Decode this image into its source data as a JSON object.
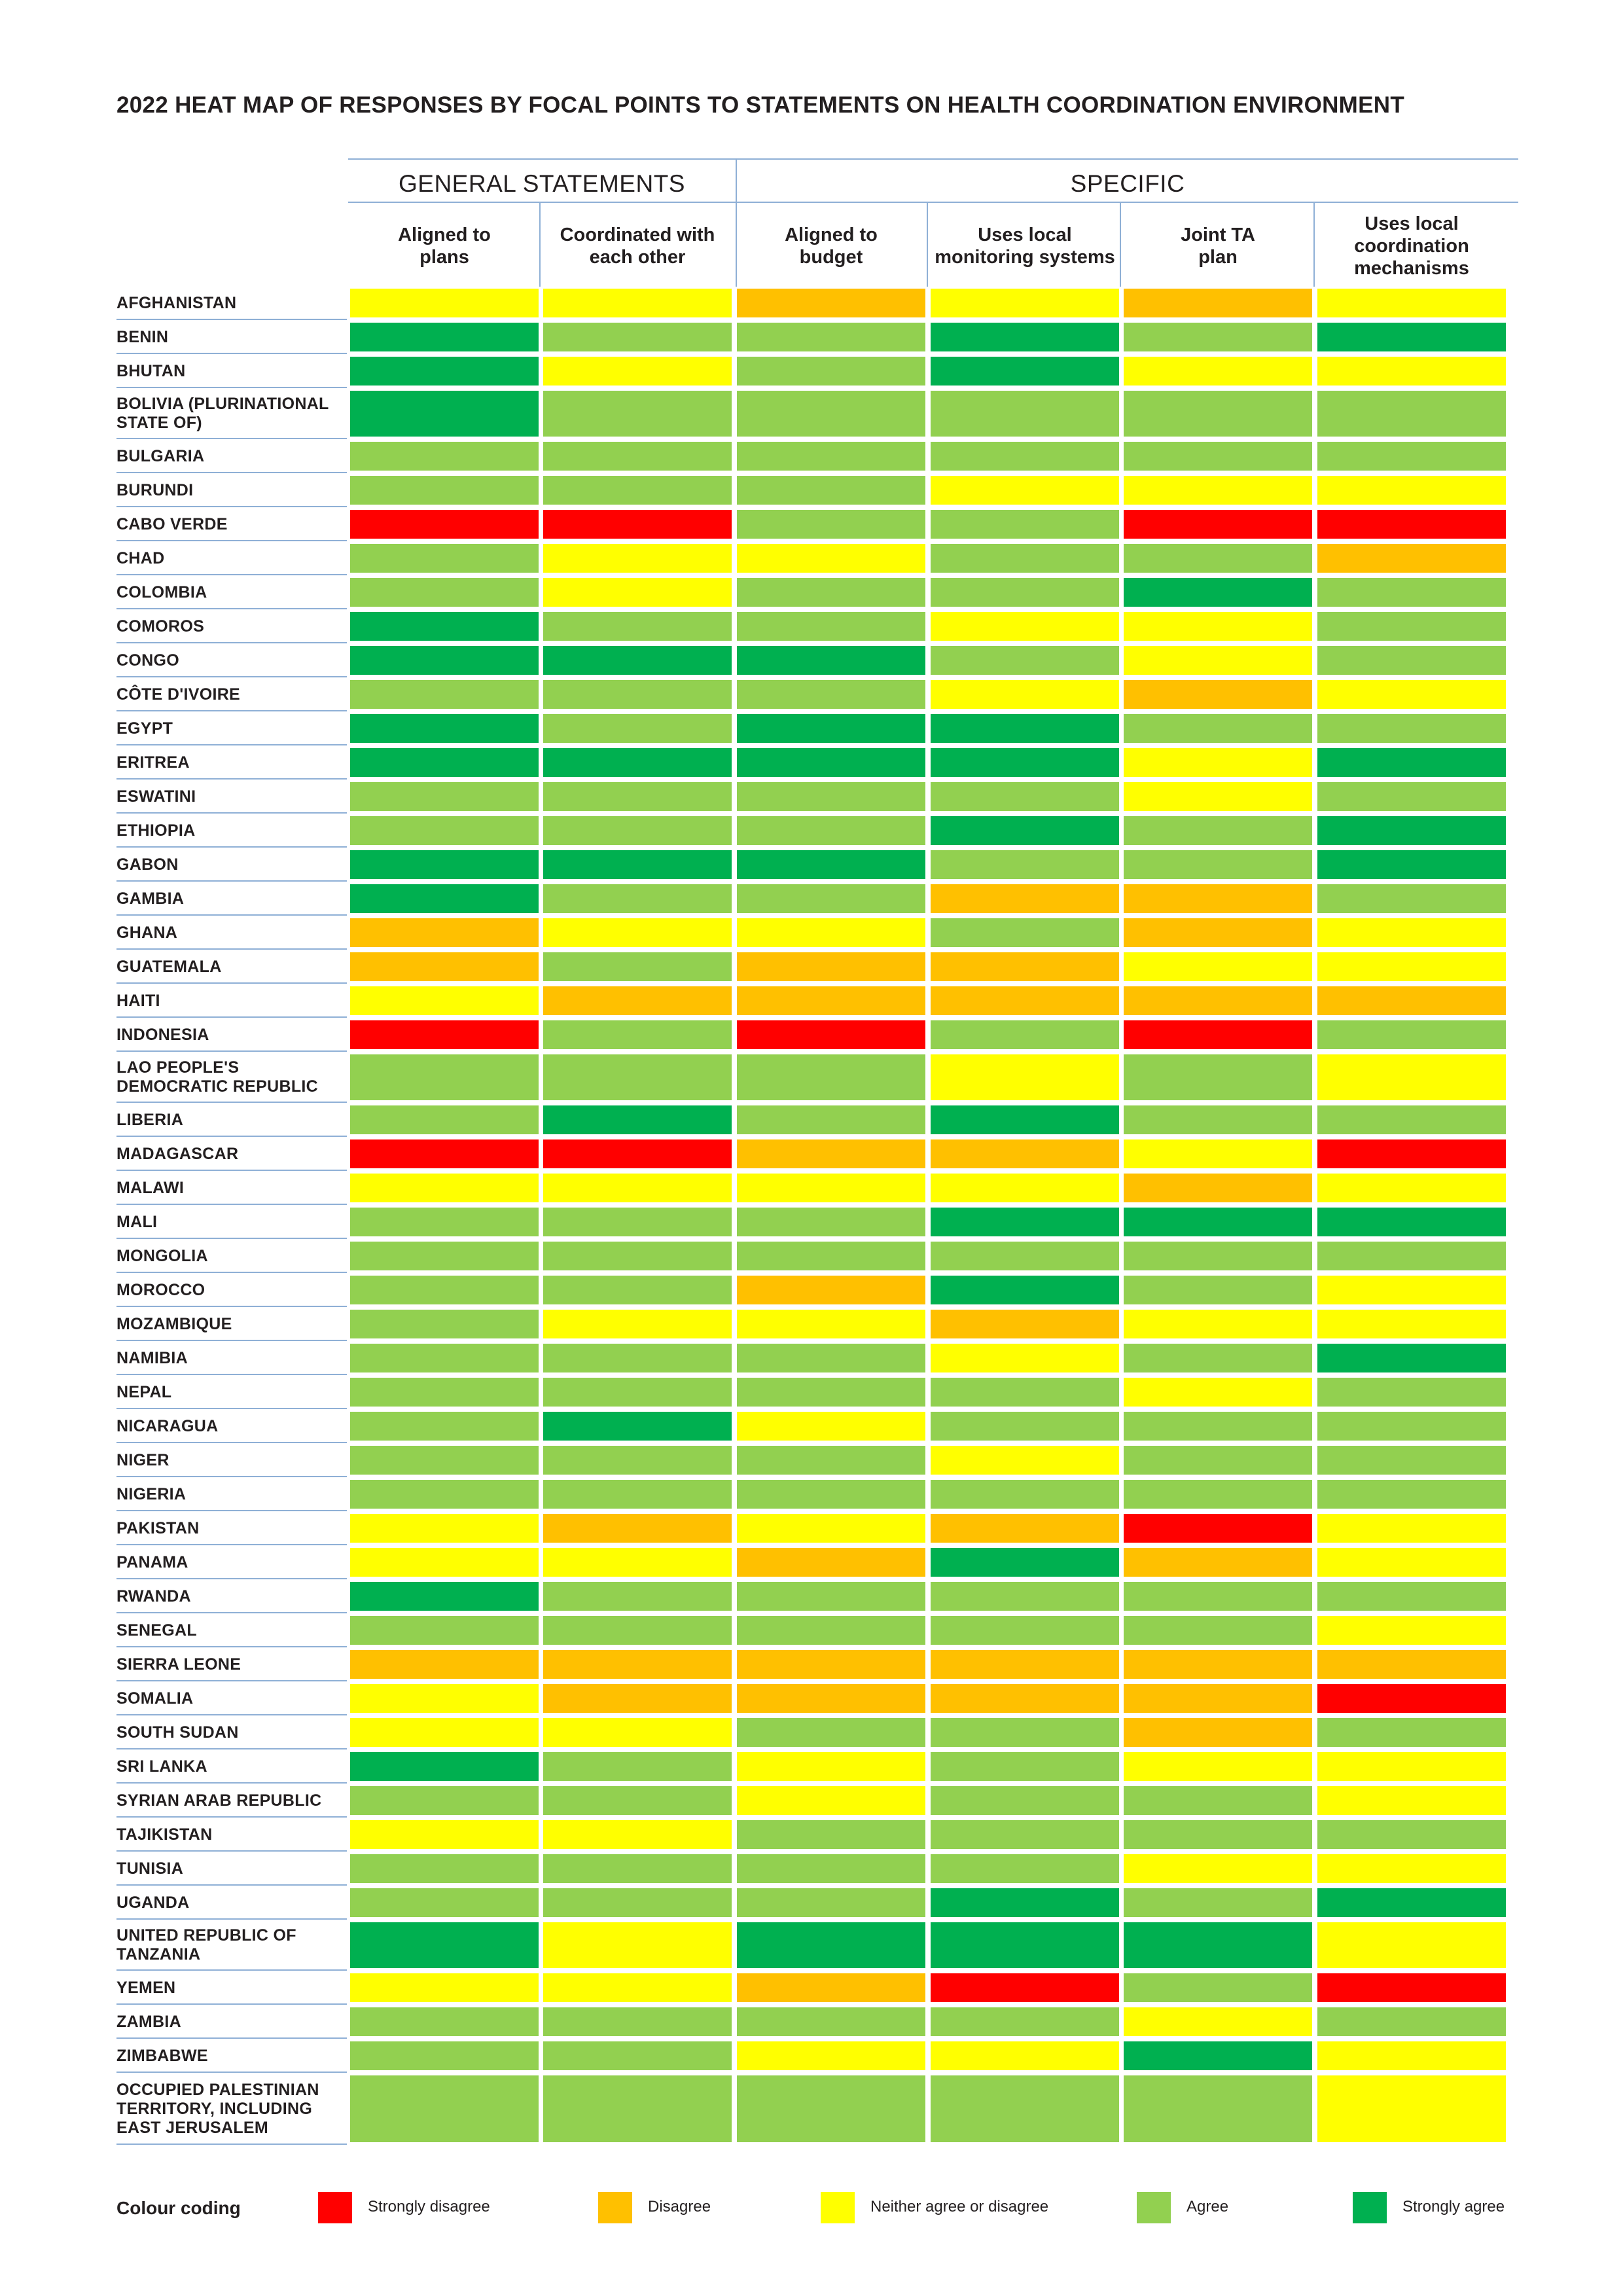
{
  "title": "2022 HEAT MAP OF RESPONSES BY FOCAL POINTS TO STATEMENTS ON HEALTH COORDINATION ENVIRONMENT",
  "groups": [
    {
      "label": "GENERAL STATEMENTS"
    },
    {
      "label": "SPECIFIC"
    }
  ],
  "columns": [
    "Aligned to\nplans",
    "Coordinated with\neach other",
    "Aligned to\nbudget",
    "Uses local\nmonitoring systems",
    "Joint TA\nplan",
    "Uses local\ncoordination\nmechanisms"
  ],
  "colors": {
    "1": "#ff0000",
    "2": "#ffc000",
    "3": "#ffff00",
    "4": "#92d050",
    "5": "#00b050"
  },
  "legend": {
    "title": "Colour coding",
    "items": [
      {
        "label": "Strongly disagree",
        "level": 1
      },
      {
        "label": "Disagree",
        "level": 2
      },
      {
        "label": "Neither agree or disagree",
        "level": 3
      },
      {
        "label": "Agree",
        "level": 4
      },
      {
        "label": "Strongly agree",
        "level": 5
      }
    ]
  },
  "chart_data": {
    "type": "heatmap",
    "title": "2022 HEAT MAP OF RESPONSES BY FOCAL POINTS TO STATEMENTS ON HEALTH COORDINATION ENVIRONMENT",
    "scale": {
      "1": "Strongly disagree",
      "2": "Disagree",
      "3": "Neither agree or disagree",
      "4": "Agree",
      "5": "Strongly agree"
    },
    "x": [
      "Aligned to plans",
      "Coordinated with each other",
      "Aligned to budget",
      "Uses local monitoring systems",
      "Joint TA plan",
      "Uses local coordination mechanisms"
    ],
    "rows": [
      {
        "country": "AFGHANISTAN",
        "values": [
          3,
          3,
          2,
          3,
          2,
          3
        ]
      },
      {
        "country": "BENIN",
        "values": [
          5,
          4,
          4,
          5,
          4,
          5
        ]
      },
      {
        "country": "BHUTAN",
        "values": [
          5,
          3,
          4,
          5,
          3,
          3
        ]
      },
      {
        "country": "BOLIVIA (PLURINATIONAL\nSTATE OF)",
        "values": [
          5,
          4,
          4,
          4,
          4,
          4
        ]
      },
      {
        "country": "BULGARIA",
        "values": [
          4,
          4,
          4,
          4,
          4,
          4
        ]
      },
      {
        "country": "BURUNDI",
        "values": [
          4,
          4,
          4,
          3,
          3,
          3
        ]
      },
      {
        "country": "CABO VERDE",
        "values": [
          1,
          1,
          4,
          4,
          1,
          1
        ]
      },
      {
        "country": "CHAD",
        "values": [
          4,
          3,
          3,
          4,
          4,
          2
        ]
      },
      {
        "country": "COLOMBIA",
        "values": [
          4,
          3,
          4,
          4,
          5,
          4
        ]
      },
      {
        "country": "COMOROS",
        "values": [
          5,
          4,
          4,
          3,
          3,
          4
        ]
      },
      {
        "country": "CONGO",
        "values": [
          5,
          5,
          5,
          4,
          3,
          4
        ]
      },
      {
        "country": "CÔTE D'IVOIRE",
        "values": [
          4,
          4,
          4,
          3,
          2,
          3
        ]
      },
      {
        "country": "EGYPT",
        "values": [
          5,
          4,
          5,
          5,
          4,
          4
        ]
      },
      {
        "country": "ERITREA",
        "values": [
          5,
          5,
          5,
          5,
          3,
          5
        ]
      },
      {
        "country": "ESWATINI",
        "values": [
          4,
          4,
          4,
          4,
          3,
          4
        ]
      },
      {
        "country": "ETHIOPIA",
        "values": [
          4,
          4,
          4,
          5,
          4,
          5
        ]
      },
      {
        "country": "GABON",
        "values": [
          5,
          5,
          5,
          4,
          4,
          5
        ]
      },
      {
        "country": "GAMBIA",
        "values": [
          5,
          4,
          4,
          2,
          2,
          4
        ]
      },
      {
        "country": "GHANA",
        "values": [
          2,
          3,
          3,
          4,
          2,
          3
        ]
      },
      {
        "country": "GUATEMALA",
        "values": [
          2,
          4,
          2,
          2,
          3,
          3
        ]
      },
      {
        "country": "HAITI",
        "values": [
          3,
          2,
          2,
          2,
          2,
          2
        ]
      },
      {
        "country": "INDONESIA",
        "values": [
          1,
          4,
          1,
          4,
          1,
          4
        ]
      },
      {
        "country": "LAO PEOPLE'S\nDEMOCRATIC REPUBLIC",
        "values": [
          4,
          4,
          4,
          3,
          4,
          3
        ]
      },
      {
        "country": "LIBERIA",
        "values": [
          4,
          5,
          4,
          5,
          4,
          4
        ]
      },
      {
        "country": "MADAGASCAR",
        "values": [
          1,
          1,
          2,
          2,
          3,
          1
        ]
      },
      {
        "country": "MALAWI",
        "values": [
          3,
          3,
          3,
          3,
          2,
          3
        ]
      },
      {
        "country": "MALI",
        "values": [
          4,
          4,
          4,
          5,
          5,
          5
        ]
      },
      {
        "country": "MONGOLIA",
        "values": [
          4,
          4,
          4,
          4,
          4,
          4
        ]
      },
      {
        "country": "MOROCCO",
        "values": [
          4,
          4,
          2,
          5,
          4,
          3
        ]
      },
      {
        "country": "MOZAMBIQUE",
        "values": [
          4,
          3,
          3,
          2,
          3,
          3
        ]
      },
      {
        "country": "NAMIBIA",
        "values": [
          4,
          4,
          4,
          3,
          4,
          5
        ]
      },
      {
        "country": "NEPAL",
        "values": [
          4,
          4,
          4,
          4,
          3,
          4
        ]
      },
      {
        "country": "NICARAGUA",
        "values": [
          4,
          5,
          3,
          4,
          4,
          4
        ]
      },
      {
        "country": "NIGER",
        "values": [
          4,
          4,
          4,
          3,
          4,
          4
        ]
      },
      {
        "country": "NIGERIA",
        "values": [
          4,
          4,
          4,
          4,
          4,
          4
        ]
      },
      {
        "country": "PAKISTAN",
        "values": [
          3,
          2,
          3,
          2,
          1,
          3
        ]
      },
      {
        "country": "PANAMA",
        "values": [
          3,
          3,
          2,
          5,
          2,
          3
        ]
      },
      {
        "country": "RWANDA",
        "values": [
          5,
          4,
          4,
          4,
          4,
          4
        ]
      },
      {
        "country": "SENEGAL",
        "values": [
          4,
          4,
          4,
          4,
          4,
          3
        ]
      },
      {
        "country": "SIERRA LEONE",
        "values": [
          2,
          2,
          2,
          2,
          2,
          2
        ]
      },
      {
        "country": "SOMALIA",
        "values": [
          3,
          2,
          2,
          2,
          2,
          1
        ]
      },
      {
        "country": "SOUTH SUDAN",
        "values": [
          3,
          3,
          4,
          4,
          2,
          4
        ]
      },
      {
        "country": "SRI LANKA",
        "values": [
          5,
          4,
          3,
          4,
          3,
          3
        ]
      },
      {
        "country": "SYRIAN ARAB REPUBLIC",
        "values": [
          4,
          4,
          3,
          4,
          4,
          3
        ]
      },
      {
        "country": "TAJIKISTAN",
        "values": [
          3,
          3,
          4,
          4,
          4,
          4
        ]
      },
      {
        "country": "TUNISIA",
        "values": [
          4,
          4,
          4,
          4,
          3,
          3
        ]
      },
      {
        "country": "UGANDA",
        "values": [
          4,
          4,
          4,
          5,
          4,
          5
        ]
      },
      {
        "country": "UNITED REPUBLIC OF\nTANZANIA",
        "values": [
          5,
          3,
          5,
          5,
          5,
          3
        ]
      },
      {
        "country": "YEMEN",
        "values": [
          3,
          3,
          2,
          1,
          4,
          1
        ]
      },
      {
        "country": "ZAMBIA",
        "values": [
          4,
          4,
          4,
          4,
          3,
          4
        ]
      },
      {
        "country": "ZIMBABWE",
        "values": [
          4,
          4,
          3,
          3,
          5,
          3
        ]
      },
      {
        "country": "OCCUPIED PALESTINIAN\nTERRITORY, INCLUDING\nEAST JERUSALEM",
        "values": [
          4,
          4,
          4,
          4,
          4,
          3
        ]
      }
    ]
  }
}
